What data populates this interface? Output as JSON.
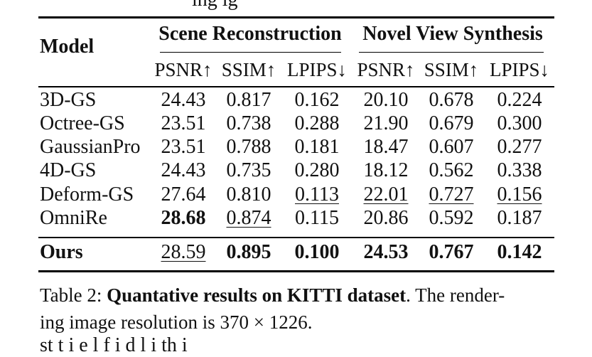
{
  "clipped_top_text": "ing ig",
  "clipped_bottom_text": "st  t  i  e     l    f                 i       d  l  i      th  i",
  "table": {
    "model_header": "Model",
    "groups": [
      {
        "label": "Scene Reconstruction"
      },
      {
        "label": "Novel View Synthesis"
      }
    ],
    "metric_headers": [
      "PSNR↑",
      "SSIM↑",
      "LPIPS↓",
      "PSNR↑",
      "SSIM↑",
      "LPIPS↓"
    ],
    "rows": [
      {
        "model": "3D-GS",
        "values": [
          "24.43",
          "0.817",
          "0.162",
          "20.10",
          "0.678",
          "0.224"
        ],
        "bold": [
          false,
          false,
          false,
          false,
          false,
          false
        ],
        "underline": [
          false,
          false,
          false,
          false,
          false,
          false
        ]
      },
      {
        "model": "Octree-GS",
        "values": [
          "23.51",
          "0.738",
          "0.288",
          "21.90",
          "0.679",
          "0.300"
        ],
        "bold": [
          false,
          false,
          false,
          false,
          false,
          false
        ],
        "underline": [
          false,
          false,
          false,
          false,
          false,
          false
        ]
      },
      {
        "model": "GaussianPro",
        "values": [
          "23.51",
          "0.788",
          "0.181",
          "18.47",
          "0.607",
          "0.277"
        ],
        "bold": [
          false,
          false,
          false,
          false,
          false,
          false
        ],
        "underline": [
          false,
          false,
          false,
          false,
          false,
          false
        ]
      },
      {
        "model": "4D-GS",
        "values": [
          "24.43",
          "0.735",
          "0.280",
          "18.12",
          "0.562",
          "0.338"
        ],
        "bold": [
          false,
          false,
          false,
          false,
          false,
          false
        ],
        "underline": [
          false,
          false,
          false,
          false,
          false,
          false
        ]
      },
      {
        "model": "Deform-GS",
        "values": [
          "27.64",
          "0.810",
          "0.113",
          "22.01",
          "0.727",
          "0.156"
        ],
        "bold": [
          false,
          false,
          false,
          false,
          false,
          false
        ],
        "underline": [
          false,
          false,
          true,
          true,
          true,
          true
        ]
      },
      {
        "model": "OmniRe",
        "values": [
          "28.68",
          "0.874",
          "0.115",
          "20.86",
          "0.592",
          "0.187"
        ],
        "bold": [
          true,
          false,
          false,
          false,
          false,
          false
        ],
        "underline": [
          false,
          true,
          false,
          false,
          false,
          false
        ]
      }
    ],
    "final_row": {
      "model": "Ours",
      "values": [
        "28.59",
        "0.895",
        "0.100",
        "24.53",
        "0.767",
        "0.142"
      ],
      "bold": [
        false,
        true,
        true,
        true,
        true,
        true
      ],
      "underline": [
        true,
        false,
        false,
        false,
        false,
        false
      ]
    }
  },
  "caption": {
    "label": "Table 2: ",
    "title": "Quantative results on KITTI dataset",
    "line1_rest": ". The render-",
    "line2": "ing image resolution is 370 × 1226."
  }
}
